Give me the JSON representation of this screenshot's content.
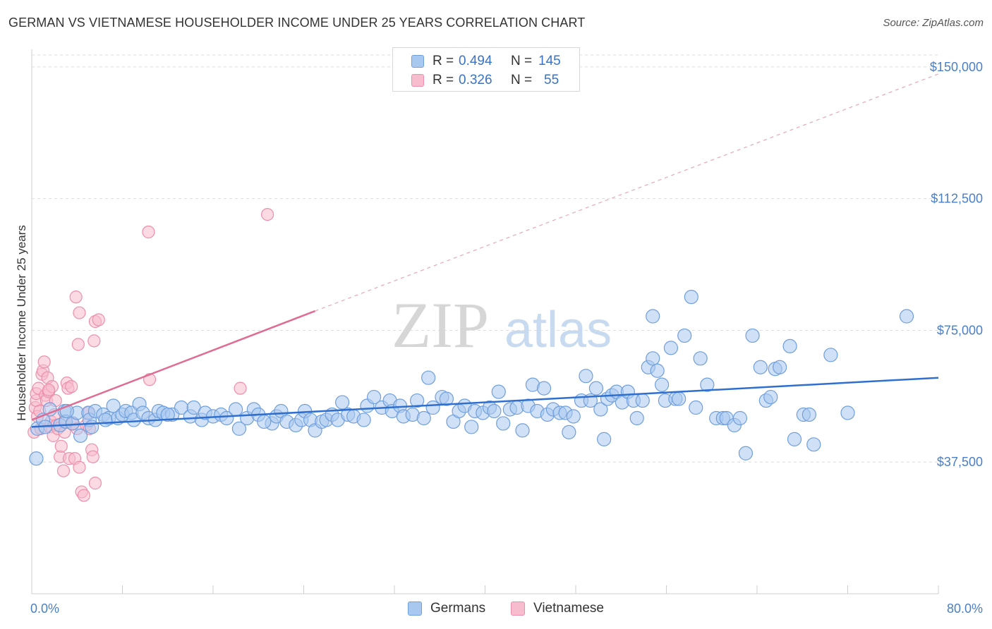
{
  "header": {
    "title": "GERMAN VS VIETNAMESE HOUSEHOLDER INCOME UNDER 25 YEARS CORRELATION CHART",
    "source": "Source: ZipAtlas.com"
  },
  "legend": {
    "series": [
      {
        "r_label": "R =",
        "r_value": "0.494",
        "n_label": "N =",
        "n_value": "145"
      },
      {
        "r_label": "R =",
        "r_value": "0.326",
        "n_label": "N =",
        "n_value": "55"
      }
    ]
  },
  "bottom_legend": {
    "germans": "Germans",
    "vietnamese": "Vietnamese"
  },
  "watermark": {
    "zip": "ZIP",
    "atlas": "atlas"
  },
  "colors": {
    "german_fill": "#a9c8f0",
    "german_stroke": "#6f9fdc",
    "german_line": "#2f6fcf",
    "viet_fill": "#f7bccd",
    "viet_stroke": "#ec8fab",
    "viet_line": "#e06b93",
    "grid": "#dcdcdc",
    "tick_text": "#4a7fc6"
  },
  "chart_data": {
    "type": "scatter",
    "title": "GERMAN VS VIETNAMESE HOUSEHOLDER INCOME UNDER 25 YEARS CORRELATION CHART",
    "ylabel": "Householder Income Under 25 years",
    "xlabel": "",
    "xlim": [
      0,
      80
    ],
    "ylim": [
      0,
      155000
    ],
    "x_tick_labels": [
      "0.0%",
      "80.0%"
    ],
    "y_ticks": [
      37500,
      75000,
      112500,
      150000
    ],
    "y_tick_labels": [
      "$37,500",
      "$75,000",
      "$112,500",
      "$150,000"
    ],
    "grid": true,
    "legend_position": "top-center",
    "series": [
      {
        "name": "Germans",
        "r": 0.494,
        "n": 145,
        "trend": {
          "x0": 0,
          "y0": 47500,
          "x1": 80,
          "y1": 61500,
          "dashed_extension": false
        },
        "points": [
          [
            0.4,
            38500
          ],
          [
            0.5,
            47000
          ],
          [
            1,
            49500
          ],
          [
            1.2,
            47500
          ],
          [
            1.6,
            52500
          ],
          [
            2.5,
            48000
          ],
          [
            2.9,
            52000
          ],
          [
            3,
            49000
          ],
          [
            3.6,
            48500
          ],
          [
            4,
            51500
          ],
          [
            4.3,
            45000
          ],
          [
            5,
            51500
          ],
          [
            5.1,
            49500
          ],
          [
            5.3,
            47500
          ],
          [
            5.6,
            52000
          ],
          [
            6.3,
            51000
          ],
          [
            6.8,
            50000
          ],
          [
            7.2,
            53500
          ],
          [
            7.6,
            50000
          ],
          [
            8,
            51000
          ],
          [
            8.3,
            52000
          ],
          [
            8.8,
            51500
          ],
          [
            9,
            49500
          ],
          [
            9.5,
            54000
          ],
          [
            9.8,
            51500
          ],
          [
            10.3,
            50000
          ],
          [
            10.9,
            49500
          ],
          [
            11.2,
            52000
          ],
          [
            11.6,
            51500
          ],
          [
            12.4,
            51000
          ],
          [
            13.2,
            53000
          ],
          [
            14,
            50500
          ],
          [
            14.3,
            53000
          ],
          [
            15,
            49500
          ],
          [
            15.3,
            51500
          ],
          [
            16,
            50500
          ],
          [
            16.7,
            51000
          ],
          [
            17.2,
            50000
          ],
          [
            18.3,
            47000
          ],
          [
            19,
            50000
          ],
          [
            19.6,
            52500
          ],
          [
            20,
            51000
          ],
          [
            21.2,
            48500
          ],
          [
            21.6,
            50500
          ],
          [
            22,
            52000
          ],
          [
            22.5,
            49000
          ],
          [
            23.3,
            48000
          ],
          [
            23.8,
            49500
          ],
          [
            24.1,
            52000
          ],
          [
            24.6,
            49500
          ],
          [
            25,
            46500
          ],
          [
            25.6,
            49000
          ],
          [
            26,
            49500
          ],
          [
            26.5,
            51000
          ],
          [
            27,
            49500
          ],
          [
            27.4,
            54500
          ],
          [
            27.9,
            51000
          ],
          [
            28.4,
            50500
          ],
          [
            29.3,
            49500
          ],
          [
            29.6,
            53500
          ],
          [
            30.2,
            56000
          ],
          [
            30.9,
            53000
          ],
          [
            31.6,
            55000
          ],
          [
            31.8,
            52000
          ],
          [
            32.5,
            53500
          ],
          [
            32.8,
            50500
          ],
          [
            33.6,
            51000
          ],
          [
            34,
            55000
          ],
          [
            34.6,
            50000
          ],
          [
            35,
            61500
          ],
          [
            35.4,
            53000
          ],
          [
            36.2,
            56000
          ],
          [
            36.6,
            55500
          ],
          [
            37.2,
            49000
          ],
          [
            37.7,
            52000
          ],
          [
            38.2,
            53500
          ],
          [
            38.8,
            47500
          ],
          [
            39.1,
            52000
          ],
          [
            39.8,
            51500
          ],
          [
            40.4,
            53000
          ],
          [
            40.8,
            52000
          ],
          [
            41.2,
            57500
          ],
          [
            41.6,
            48500
          ],
          [
            42.2,
            52500
          ],
          [
            42.8,
            53000
          ],
          [
            43.3,
            46500
          ],
          [
            43.8,
            53500
          ],
          [
            44.2,
            59500
          ],
          [
            44.6,
            52000
          ],
          [
            45.2,
            58500
          ],
          [
            45.5,
            51000
          ],
          [
            46,
            52500
          ],
          [
            46.6,
            51500
          ],
          [
            47.1,
            51500
          ],
          [
            47.4,
            46000
          ],
          [
            47.8,
            50500
          ],
          [
            48.5,
            55000
          ],
          [
            48.9,
            62000
          ],
          [
            49.3,
            55000
          ],
          [
            49.8,
            58500
          ],
          [
            50.2,
            52500
          ],
          [
            50.5,
            44000
          ],
          [
            50.8,
            55500
          ],
          [
            51.2,
            56500
          ],
          [
            51.6,
            57500
          ],
          [
            52.1,
            54500
          ],
          [
            52.6,
            57500
          ],
          [
            53.1,
            55000
          ],
          [
            53.4,
            50000
          ],
          [
            53.9,
            55000
          ],
          [
            54.4,
            64500
          ],
          [
            54.8,
            67000
          ],
          [
            55.2,
            63500
          ],
          [
            55.6,
            59500
          ],
          [
            55.9,
            55000
          ],
          [
            56.4,
            70000
          ],
          [
            56.8,
            55500
          ],
          [
            57.1,
            55500
          ],
          [
            57.6,
            73500
          ],
          [
            58.2,
            84500
          ],
          [
            58.6,
            53000
          ],
          [
            59,
            67000
          ],
          [
            59.6,
            59500
          ],
          [
            60.4,
            50000
          ],
          [
            61,
            50000
          ],
          [
            61.3,
            50000
          ],
          [
            62,
            48000
          ],
          [
            62.5,
            50000
          ],
          [
            63,
            40000
          ],
          [
            63.6,
            73500
          ],
          [
            64.3,
            64500
          ],
          [
            64.8,
            55000
          ],
          [
            65.2,
            56000
          ],
          [
            65.6,
            64000
          ],
          [
            66,
            64500
          ],
          [
            66.9,
            70500
          ],
          [
            67.3,
            44000
          ],
          [
            68.1,
            51000
          ],
          [
            68.6,
            51000
          ],
          [
            69,
            42500
          ],
          [
            70.5,
            68000
          ],
          [
            72,
            51500
          ],
          [
            77.2,
            79000
          ],
          [
            54.8,
            79000
          ],
          [
            3.1,
            52000
          ],
          [
            6.5,
            49500
          ],
          [
            12,
            51000
          ],
          [
            18,
            52500
          ],
          [
            20.5,
            49000
          ]
        ]
      },
      {
        "name": "Vietnamese",
        "r": 0.326,
        "n": 55,
        "trend": {
          "x0": 0,
          "y0": 49500,
          "x1": 25,
          "y1": 80500,
          "dashed_to_x": 80,
          "dashed_to_y": 148000
        },
        "points": [
          [
            0.2,
            46000
          ],
          [
            0.3,
            53000
          ],
          [
            0.4,
            55000
          ],
          [
            0.4,
            57000
          ],
          [
            0.5,
            50500
          ],
          [
            0.6,
            58500
          ],
          [
            0.7,
            52000
          ],
          [
            0.8,
            47000
          ],
          [
            0.9,
            62500
          ],
          [
            1,
            63500
          ],
          [
            1.1,
            66000
          ],
          [
            1.2,
            56500
          ],
          [
            1.3,
            55000
          ],
          [
            1.4,
            61500
          ],
          [
            1.5,
            57500
          ],
          [
            1.6,
            47500
          ],
          [
            1.7,
            49000
          ],
          [
            1.8,
            59000
          ],
          [
            1.9,
            45000
          ],
          [
            2,
            51000
          ],
          [
            2.1,
            55000
          ],
          [
            2.2,
            48000
          ],
          [
            2.3,
            47000
          ],
          [
            2.5,
            39000
          ],
          [
            2.6,
            42000
          ],
          [
            2.8,
            35000
          ],
          [
            2.9,
            46000
          ],
          [
            3,
            49000
          ],
          [
            3.1,
            60000
          ],
          [
            3.2,
            58500
          ],
          [
            3.3,
            38500
          ],
          [
            3.5,
            59000
          ],
          [
            3.6,
            48500
          ],
          [
            3.8,
            38500
          ],
          [
            4,
            47000
          ],
          [
            4.2,
            36000
          ],
          [
            4.4,
            29000
          ],
          [
            4.6,
            28000
          ],
          [
            4.8,
            48000
          ],
          [
            5,
            51500
          ],
          [
            5.1,
            47000
          ],
          [
            5.3,
            41000
          ],
          [
            5.4,
            39000
          ],
          [
            5.6,
            31500
          ],
          [
            3.9,
            84500
          ],
          [
            4.2,
            80000
          ],
          [
            5.6,
            77500
          ],
          [
            5.9,
            78000
          ],
          [
            5.5,
            72000
          ],
          [
            4.1,
            71000
          ],
          [
            1.5,
            58000
          ],
          [
            10.3,
            103000
          ],
          [
            10.4,
            61000
          ],
          [
            18.4,
            58500
          ],
          [
            20.8,
            108000
          ]
        ]
      }
    ]
  }
}
